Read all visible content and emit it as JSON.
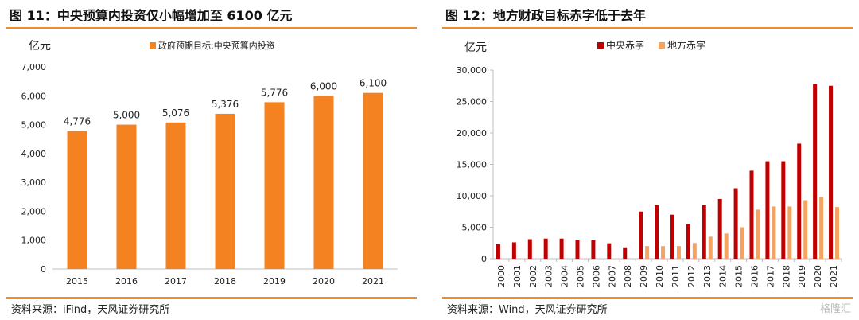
{
  "colors": {
    "orange": "#f58220",
    "red": "#c00000",
    "lightorange": "#f4a460",
    "rule": "#f28c28"
  },
  "panel1": {
    "title": "图 11：中央预算内投资仅小幅增加至 6100 亿元",
    "source": "资料来源：iFind，天风证券研究所"
  },
  "panel2": {
    "title": "图 12：地方财政目标赤字低于去年",
    "source": "资料来源：Wind，天风证券研究所",
    "watermark": "格隆汇"
  },
  "chart_data": [
    {
      "type": "bar",
      "unit_label": "亿元",
      "categories": [
        "2015",
        "2016",
        "2017",
        "2018",
        "2019",
        "2020",
        "2021"
      ],
      "series": [
        {
          "name": "政府预期目标:中央预算内投资",
          "values": [
            4776,
            5000,
            5076,
            5376,
            5776,
            6000,
            6100
          ],
          "labels": [
            "4,776",
            "5,000",
            "5,076",
            "5,376",
            "5,776",
            "6,000",
            "6,100"
          ]
        }
      ],
      "ylim": [
        0,
        7000
      ],
      "yticks": [
        "0",
        "1,000",
        "2,000",
        "3,000",
        "4,000",
        "5,000",
        "6,000",
        "7,000"
      ],
      "legend": "top-center",
      "grid": false
    },
    {
      "type": "bar",
      "unit_label": "亿元",
      "categories": [
        "2000",
        "2001",
        "2002",
        "2003",
        "2004",
        "2005",
        "2006",
        "2007",
        "2008",
        "2009",
        "2010",
        "2011",
        "2012",
        "2013",
        "2014",
        "2015",
        "2016",
        "2017",
        "2018",
        "2019",
        "2020",
        "2021"
      ],
      "series": [
        {
          "name": "中央赤字",
          "values": [
            2300,
            2600,
            3100,
            3200,
            3200,
            3000,
            2950,
            2450,
            1800,
            7500,
            8500,
            7000,
            5500,
            8500,
            9500,
            11200,
            14000,
            15500,
            15500,
            18300,
            27800,
            27500
          ]
        },
        {
          "name": "地方赤字",
          "values": [
            0,
            0,
            0,
            0,
            0,
            0,
            0,
            0,
            0,
            2000,
            2000,
            2000,
            2500,
            3500,
            4000,
            5000,
            7800,
            8300,
            8300,
            9300,
            9800,
            8200
          ]
        }
      ],
      "ylim": [
        0,
        30000
      ],
      "yticks": [
        "0",
        "5,000",
        "10,000",
        "15,000",
        "20,000",
        "25,000",
        "30,000"
      ],
      "legend": "top-left",
      "grid": false
    }
  ]
}
